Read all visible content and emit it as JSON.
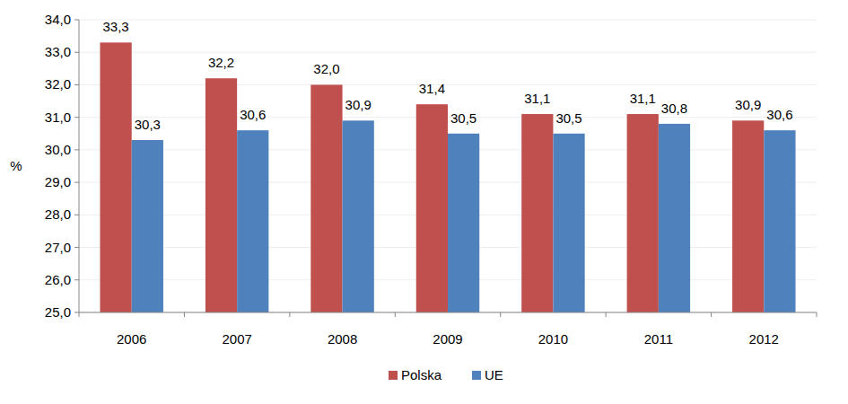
{
  "chart_data": {
    "type": "bar",
    "y_label": "%",
    "categories": [
      "2006",
      "2007",
      "2008",
      "2009",
      "2010",
      "2011",
      "2012"
    ],
    "series": [
      {
        "name": "Polska",
        "color": "#c0504d",
        "values": [
          33.3,
          32.2,
          32.0,
          31.4,
          31.1,
          31.1,
          30.9
        ],
        "value_labels": [
          "33,3",
          "32,2",
          "32,0",
          "31,4",
          "31,1",
          "31,1",
          "30,9"
        ]
      },
      {
        "name": "UE",
        "color": "#4f81bd",
        "values": [
          30.3,
          30.6,
          30.9,
          30.5,
          30.5,
          30.8,
          30.6
        ],
        "value_labels": [
          "30,3",
          "30,6",
          "30,9",
          "30,5",
          "30,5",
          "30,8",
          "30,6"
        ]
      }
    ],
    "ylim": [
      25,
      34
    ],
    "yticks": [
      {
        "value": 25,
        "label": "25,0"
      },
      {
        "value": 26,
        "label": "26,0"
      },
      {
        "value": 27,
        "label": "27,0"
      },
      {
        "value": 28,
        "label": "28,0"
      },
      {
        "value": 29,
        "label": "29,0"
      },
      {
        "value": 30,
        "label": "30,0"
      },
      {
        "value": 31,
        "label": "31,0"
      },
      {
        "value": 32,
        "label": "32,0"
      },
      {
        "value": 33,
        "label": "33,0"
      },
      {
        "value": 34,
        "label": "34,0"
      }
    ],
    "grid": true,
    "legend": "bottom",
    "data_labels": true
  }
}
